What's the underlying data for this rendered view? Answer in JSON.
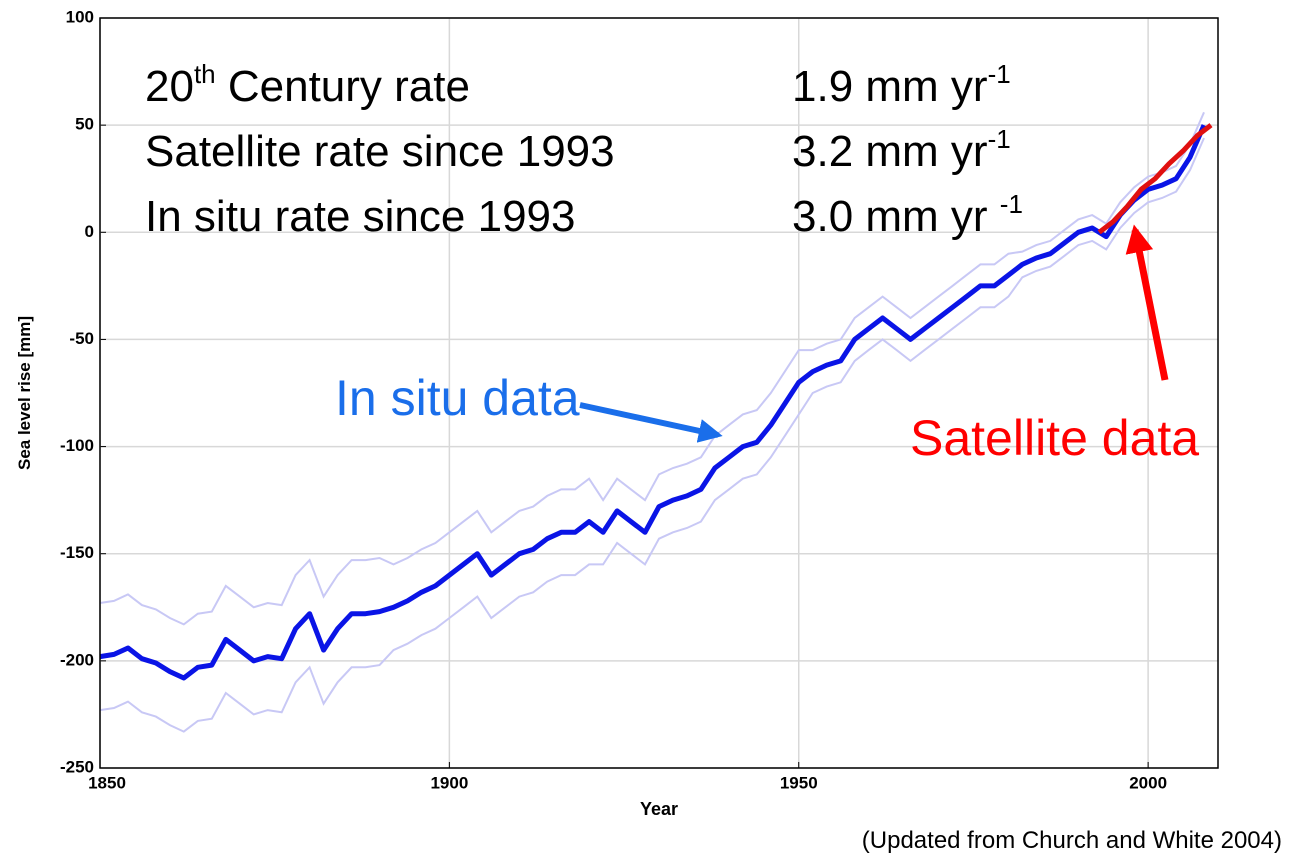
{
  "chart_data": {
    "type": "line",
    "xlabel": "Year",
    "ylabel": "Sea level rise [mm]",
    "note": "(Updated from Church and White 2004)",
    "xlim": [
      1850,
      2010
    ],
    "xticks": [
      1850,
      1900,
      1950,
      2000
    ],
    "ylim": [
      -250,
      100
    ],
    "yticks": [
      100,
      50,
      0,
      -50,
      -100,
      -150,
      -200,
      -250
    ],
    "grid": true,
    "rates": [
      {
        "label": [
          "20",
          "th",
          " Century rate"
        ],
        "value": [
          "1.9 mm yr",
          "-1"
        ]
      },
      {
        "label": [
          "Satellite rate since 1993"
        ],
        "value": [
          "3.2 mm yr",
          "-1"
        ]
      },
      {
        "label": [
          "In situ rate since 1993"
        ],
        "value": [
          "3.0 mm yr ",
          "-1"
        ]
      }
    ],
    "series": [
      {
        "name": "In situ data",
        "color": "#0a14e6",
        "label_color": "#1a6eea",
        "band_color": "#c8c8f5",
        "x": [
          1850,
          1852,
          1854,
          1856,
          1858,
          1860,
          1862,
          1864,
          1866,
          1868,
          1870,
          1872,
          1874,
          1876,
          1878,
          1880,
          1882,
          1884,
          1886,
          1888,
          1890,
          1892,
          1894,
          1896,
          1898,
          1900,
          1902,
          1904,
          1906,
          1908,
          1910,
          1912,
          1914,
          1916,
          1918,
          1920,
          1922,
          1924,
          1926,
          1928,
          1930,
          1932,
          1934,
          1936,
          1938,
          1940,
          1942,
          1944,
          1946,
          1948,
          1950,
          1952,
          1954,
          1956,
          1958,
          1960,
          1962,
          1964,
          1966,
          1968,
          1970,
          1972,
          1974,
          1976,
          1978,
          1980,
          1982,
          1984,
          1986,
          1988,
          1990,
          1992,
          1994,
          1996,
          1998,
          2000,
          2002,
          2004,
          2006,
          2008
        ],
        "values": [
          -198,
          -197,
          -194,
          -199,
          -201,
          -205,
          -208,
          -203,
          -202,
          -190,
          -195,
          -200,
          -198,
          -199,
          -185,
          -178,
          -195,
          -185,
          -178,
          -178,
          -177,
          -175,
          -172,
          -168,
          -165,
          -160,
          -155,
          -150,
          -160,
          -155,
          -150,
          -148,
          -143,
          -140,
          -140,
          -135,
          -140,
          -130,
          -135,
          -140,
          -128,
          -125,
          -123,
          -120,
          -110,
          -105,
          -100,
          -98,
          -90,
          -80,
          -70,
          -65,
          -62,
          -60,
          -50,
          -45,
          -40,
          -45,
          -50,
          -45,
          -40,
          -35,
          -30,
          -25,
          -25,
          -20,
          -15,
          -12,
          -10,
          -5,
          0,
          2,
          -2,
          8,
          15,
          20,
          22,
          25,
          35,
          50
        ],
        "errors": [
          25,
          25,
          25,
          25,
          25,
          25,
          25,
          25,
          25,
          25,
          25,
          25,
          25,
          25,
          25,
          25,
          25,
          25,
          25,
          25,
          25,
          20,
          20,
          20,
          20,
          20,
          20,
          20,
          20,
          20,
          20,
          20,
          20,
          20,
          20,
          20,
          15,
          15,
          15,
          15,
          15,
          15,
          15,
          15,
          15,
          15,
          15,
          15,
          15,
          15,
          15,
          10,
          10,
          10,
          10,
          10,
          10,
          10,
          10,
          10,
          10,
          10,
          10,
          10,
          10,
          10,
          6,
          6,
          6,
          6,
          6,
          6,
          6,
          6,
          6,
          6,
          6,
          6,
          6,
          6
        ]
      },
      {
        "name": "Satellite data",
        "color": "#e01010",
        "label_color": "#ff0000",
        "x": [
          1993,
          1995,
          1997,
          1999,
          2001,
          2003,
          2005,
          2007,
          2009
        ],
        "values": [
          0,
          5,
          12,
          20,
          25,
          32,
          38,
          45,
          50
        ]
      }
    ]
  }
}
